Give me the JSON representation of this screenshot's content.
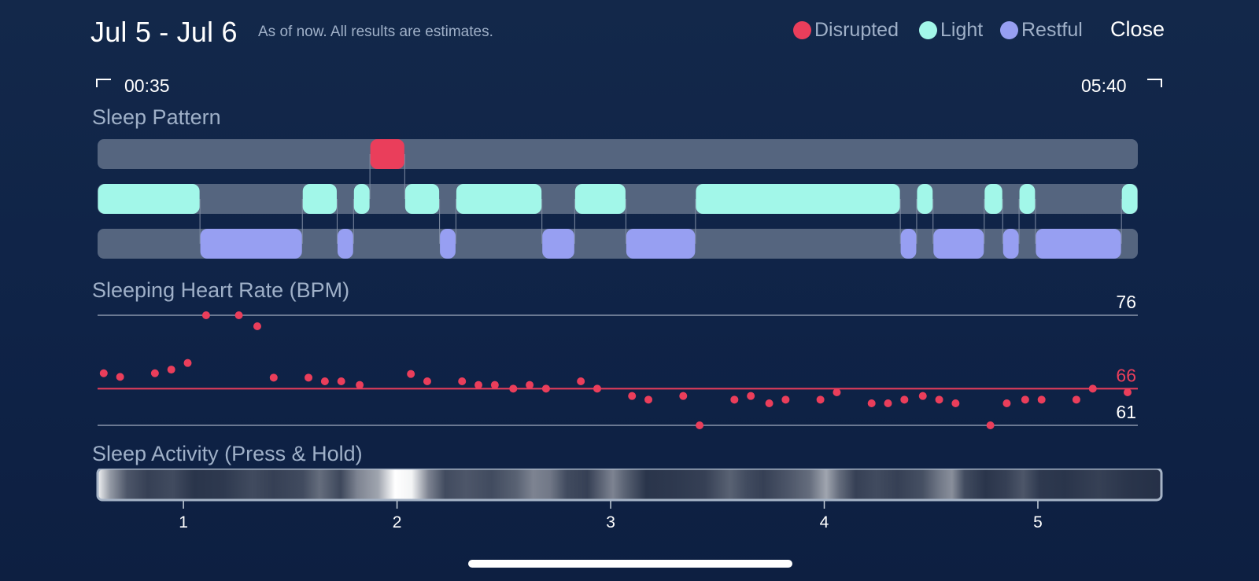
{
  "header": {
    "title": "Jul 5 - Jul 6",
    "subtitle": "As of now. All results are estimates.",
    "legend": [
      {
        "label": "Disrupted",
        "color": "#ea3e5b"
      },
      {
        "label": "Light",
        "color": "#a2f7e9"
      },
      {
        "label": "Restful",
        "color": "#979ff2"
      }
    ],
    "close_label": "Close"
  },
  "range": {
    "start": "00:35",
    "end": "05:40"
  },
  "sleep_pattern": {
    "title": "Sleep Pattern",
    "colors": {
      "disrupted": "#ea3e5b",
      "light": "#a2f7e9",
      "restful": "#979ff2",
      "track": "#55657f"
    },
    "segments": [
      {
        "stage": "light",
        "start": 0.0,
        "end": 0.5
      },
      {
        "stage": "restful",
        "start": 0.5,
        "end": 1.0
      },
      {
        "stage": "light",
        "start": 1.0,
        "end": 1.17
      },
      {
        "stage": "restful",
        "start": 1.17,
        "end": 1.25
      },
      {
        "stage": "light",
        "start": 1.25,
        "end": 1.33
      },
      {
        "stage": "disrupted",
        "start": 1.33,
        "end": 1.5
      },
      {
        "stage": "light",
        "start": 1.5,
        "end": 1.67
      },
      {
        "stage": "restful",
        "start": 1.67,
        "end": 1.75
      },
      {
        "stage": "light",
        "start": 1.75,
        "end": 2.17
      },
      {
        "stage": "restful",
        "start": 2.17,
        "end": 2.33
      },
      {
        "stage": "light",
        "start": 2.33,
        "end": 2.58
      },
      {
        "stage": "restful",
        "start": 2.58,
        "end": 2.92
      },
      {
        "stage": "light",
        "start": 2.92,
        "end": 3.92
      },
      {
        "stage": "restful",
        "start": 3.92,
        "end": 4.0
      },
      {
        "stage": "light",
        "start": 4.0,
        "end": 4.08
      },
      {
        "stage": "restful",
        "start": 4.08,
        "end": 4.33
      },
      {
        "stage": "light",
        "start": 4.33,
        "end": 4.42
      },
      {
        "stage": "restful",
        "start": 4.42,
        "end": 4.5
      },
      {
        "stage": "light",
        "start": 4.5,
        "end": 4.58
      },
      {
        "stage": "restful",
        "start": 4.58,
        "end": 5.0
      },
      {
        "stage": "light",
        "start": 5.0,
        "end": 5.08
      }
    ]
  },
  "chart_data": {
    "type": "scatter",
    "title": "Sleeping Heart Rate (BPM)",
    "xlabel": "",
    "ylabel": "",
    "xlim": [
      0,
      5.08
    ],
    "ylim": [
      61,
      76
    ],
    "reference_lines": [
      {
        "value": 76,
        "label": "76",
        "color": "#ffffff"
      },
      {
        "value": 66,
        "label": "66",
        "color": "#ea3e5b"
      },
      {
        "value": 61,
        "label": "61",
        "color": "#ffffff"
      }
    ],
    "series": [
      {
        "color": "#ea3e5b",
        "points": [
          [
            0.03,
            68.1
          ],
          [
            0.11,
            67.6
          ],
          [
            0.28,
            68.1
          ],
          [
            0.36,
            68.6
          ],
          [
            0.44,
            69.5
          ],
          [
            0.53,
            76.0
          ],
          [
            0.69,
            76.0
          ],
          [
            0.78,
            74.5
          ],
          [
            0.86,
            67.5
          ],
          [
            1.03,
            67.5
          ],
          [
            1.11,
            67.0
          ],
          [
            1.19,
            67.0
          ],
          [
            1.28,
            66.5
          ],
          [
            1.53,
            68.0
          ],
          [
            1.61,
            67.0
          ],
          [
            1.78,
            67.0
          ],
          [
            1.86,
            66.5
          ],
          [
            1.94,
            66.5
          ],
          [
            2.03,
            66.0
          ],
          [
            2.11,
            66.5
          ],
          [
            2.19,
            66.0
          ],
          [
            2.36,
            67.0
          ],
          [
            2.44,
            66.0
          ],
          [
            2.61,
            65.0
          ],
          [
            2.69,
            64.5
          ],
          [
            2.86,
            65.0
          ],
          [
            2.94,
            61.0
          ],
          [
            3.11,
            64.5
          ],
          [
            3.19,
            65.0
          ],
          [
            3.28,
            64.0
          ],
          [
            3.36,
            64.5
          ],
          [
            3.53,
            64.5
          ],
          [
            3.61,
            65.5
          ],
          [
            3.78,
            64.0
          ],
          [
            3.86,
            64.0
          ],
          [
            3.94,
            64.5
          ],
          [
            4.03,
            65.0
          ],
          [
            4.11,
            64.5
          ],
          [
            4.19,
            64.0
          ],
          [
            4.36,
            61.0
          ],
          [
            4.44,
            64.0
          ],
          [
            4.53,
            64.5
          ],
          [
            4.61,
            64.5
          ],
          [
            4.78,
            64.5
          ],
          [
            4.86,
            66.0
          ],
          [
            5.03,
            65.5
          ]
        ]
      }
    ]
  },
  "sleep_activity": {
    "title": "Sleep Activity (Press & Hold)",
    "ticks": [
      {
        "value": 0.41,
        "label": "1"
      },
      {
        "value": 1.43,
        "label": "2"
      },
      {
        "value": 2.45,
        "label": "3"
      },
      {
        "value": 3.47,
        "label": "4"
      },
      {
        "value": 4.49,
        "label": "5"
      }
    ],
    "intensity": [
      [
        0.0,
        0.95
      ],
      [
        0.06,
        0.55
      ],
      [
        0.14,
        0.25
      ],
      [
        0.24,
        0.15
      ],
      [
        0.36,
        0.2
      ],
      [
        0.46,
        0.1
      ],
      [
        0.6,
        0.12
      ],
      [
        0.74,
        0.2
      ],
      [
        0.84,
        0.15
      ],
      [
        0.98,
        0.2
      ],
      [
        1.06,
        0.35
      ],
      [
        1.16,
        0.18
      ],
      [
        1.24,
        0.45
      ],
      [
        1.34,
        0.6
      ],
      [
        1.42,
        1.0
      ],
      [
        1.5,
        0.95
      ],
      [
        1.58,
        0.45
      ],
      [
        1.66,
        0.2
      ],
      [
        1.76,
        0.25
      ],
      [
        1.88,
        0.2
      ],
      [
        2.0,
        0.3
      ],
      [
        2.08,
        0.45
      ],
      [
        2.16,
        0.4
      ],
      [
        2.24,
        0.2
      ],
      [
        2.34,
        0.15
      ],
      [
        2.46,
        0.45
      ],
      [
        2.52,
        0.3
      ],
      [
        2.62,
        0.1
      ],
      [
        2.76,
        0.12
      ],
      [
        2.9,
        0.15
      ],
      [
        3.02,
        0.3
      ],
      [
        3.1,
        0.2
      ],
      [
        3.18,
        0.15
      ],
      [
        3.3,
        0.25
      ],
      [
        3.4,
        0.35
      ],
      [
        3.48,
        0.6
      ],
      [
        3.54,
        0.35
      ],
      [
        3.62,
        0.15
      ],
      [
        3.72,
        0.2
      ],
      [
        3.82,
        0.15
      ],
      [
        3.94,
        0.22
      ],
      [
        4.02,
        0.4
      ],
      [
        4.08,
        0.5
      ],
      [
        4.14,
        0.2
      ],
      [
        4.24,
        0.1
      ],
      [
        4.34,
        0.15
      ],
      [
        4.42,
        0.25
      ],
      [
        4.5,
        0.12
      ],
      [
        4.62,
        0.1
      ],
      [
        4.78,
        0.15
      ],
      [
        4.92,
        0.1
      ],
      [
        5.08,
        0.08
      ]
    ]
  }
}
